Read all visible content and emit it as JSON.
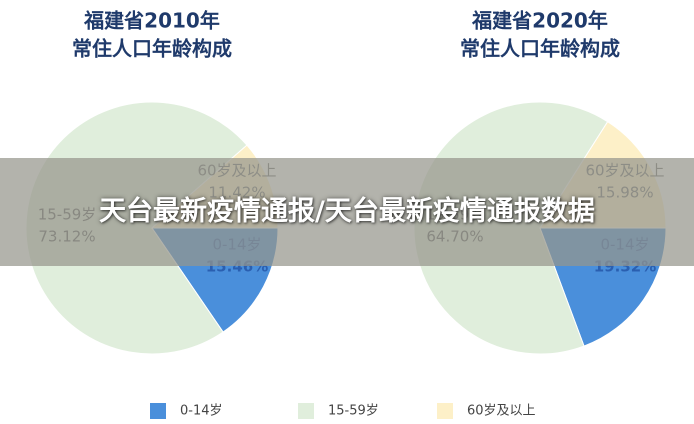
{
  "banner": {
    "text": "天台最新疫情通报/天台最新疫情通报数据"
  },
  "chart_data": [
    {
      "type": "pie",
      "title": "福建省2010年",
      "subtitle": "常住人口年龄构成",
      "categories": [
        "0-14岁",
        "15-59岁",
        "60岁及以上"
      ],
      "values": [
        15.46,
        73.12,
        11.42
      ],
      "value_labels": [
        "15.46%",
        "73.12%",
        "11.42%"
      ],
      "colors": [
        "#4a8fdb",
        "#e0eedc",
        "#fdf0c8"
      ]
    },
    {
      "type": "pie",
      "title": "福建省2020年",
      "subtitle": "常住人口年龄构成",
      "categories": [
        "0-14岁",
        "15-59岁",
        "60岁及以上"
      ],
      "values": [
        19.32,
        64.7,
        15.98
      ],
      "value_labels": [
        "19.32%",
        "64.70%",
        "15.98%"
      ],
      "colors": [
        "#4a8fdb",
        "#e0eedc",
        "#fdf0c8"
      ]
    }
  ]
}
